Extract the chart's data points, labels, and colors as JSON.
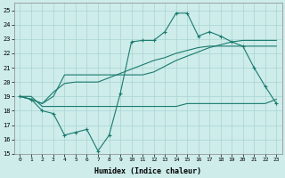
{
  "xlabel": "Humidex (Indice chaleur)",
  "bg_color": "#cdecea",
  "grid_color": "#a8d5d1",
  "line_color": "#1a7a6e",
  "xlim": [
    -0.5,
    23.5
  ],
  "ylim": [
    15,
    25.5
  ],
  "yticks": [
    15,
    16,
    17,
    18,
    19,
    20,
    21,
    22,
    23,
    24,
    25
  ],
  "xticks": [
    0,
    1,
    2,
    3,
    4,
    5,
    6,
    7,
    8,
    9,
    10,
    11,
    12,
    13,
    14,
    15,
    16,
    17,
    18,
    19,
    20,
    21,
    22,
    23
  ],
  "series_main": [
    19.0,
    18.8,
    18.0,
    17.8,
    16.3,
    16.5,
    16.7,
    15.2,
    16.3,
    19.2,
    22.8,
    22.9,
    22.9,
    23.5,
    24.8,
    24.8,
    23.2,
    23.5,
    23.2,
    22.8,
    22.5,
    21.0,
    19.7,
    18.5
  ],
  "series_line1": [
    19.0,
    19.0,
    18.3,
    18.3,
    18.3,
    18.3,
    18.3,
    18.3,
    18.3,
    18.3,
    18.3,
    18.3,
    18.3,
    18.3,
    18.3,
    18.5,
    18.5,
    18.5,
    18.5,
    18.5,
    18.5,
    18.5,
    18.5,
    18.8
  ],
  "series_line2": [
    19.0,
    18.8,
    18.5,
    19.0,
    20.5,
    20.5,
    20.5,
    20.5,
    20.5,
    20.5,
    20.5,
    20.5,
    20.7,
    21.1,
    21.5,
    21.8,
    22.1,
    22.4,
    22.6,
    22.8,
    22.9,
    22.9,
    22.9,
    22.9
  ],
  "series_line3": [
    19.0,
    18.8,
    18.5,
    19.3,
    19.9,
    20.0,
    20.0,
    20.0,
    20.3,
    20.6,
    20.9,
    21.2,
    21.5,
    21.7,
    22.0,
    22.2,
    22.4,
    22.5,
    22.5,
    22.5,
    22.5,
    22.5,
    22.5,
    22.5
  ]
}
